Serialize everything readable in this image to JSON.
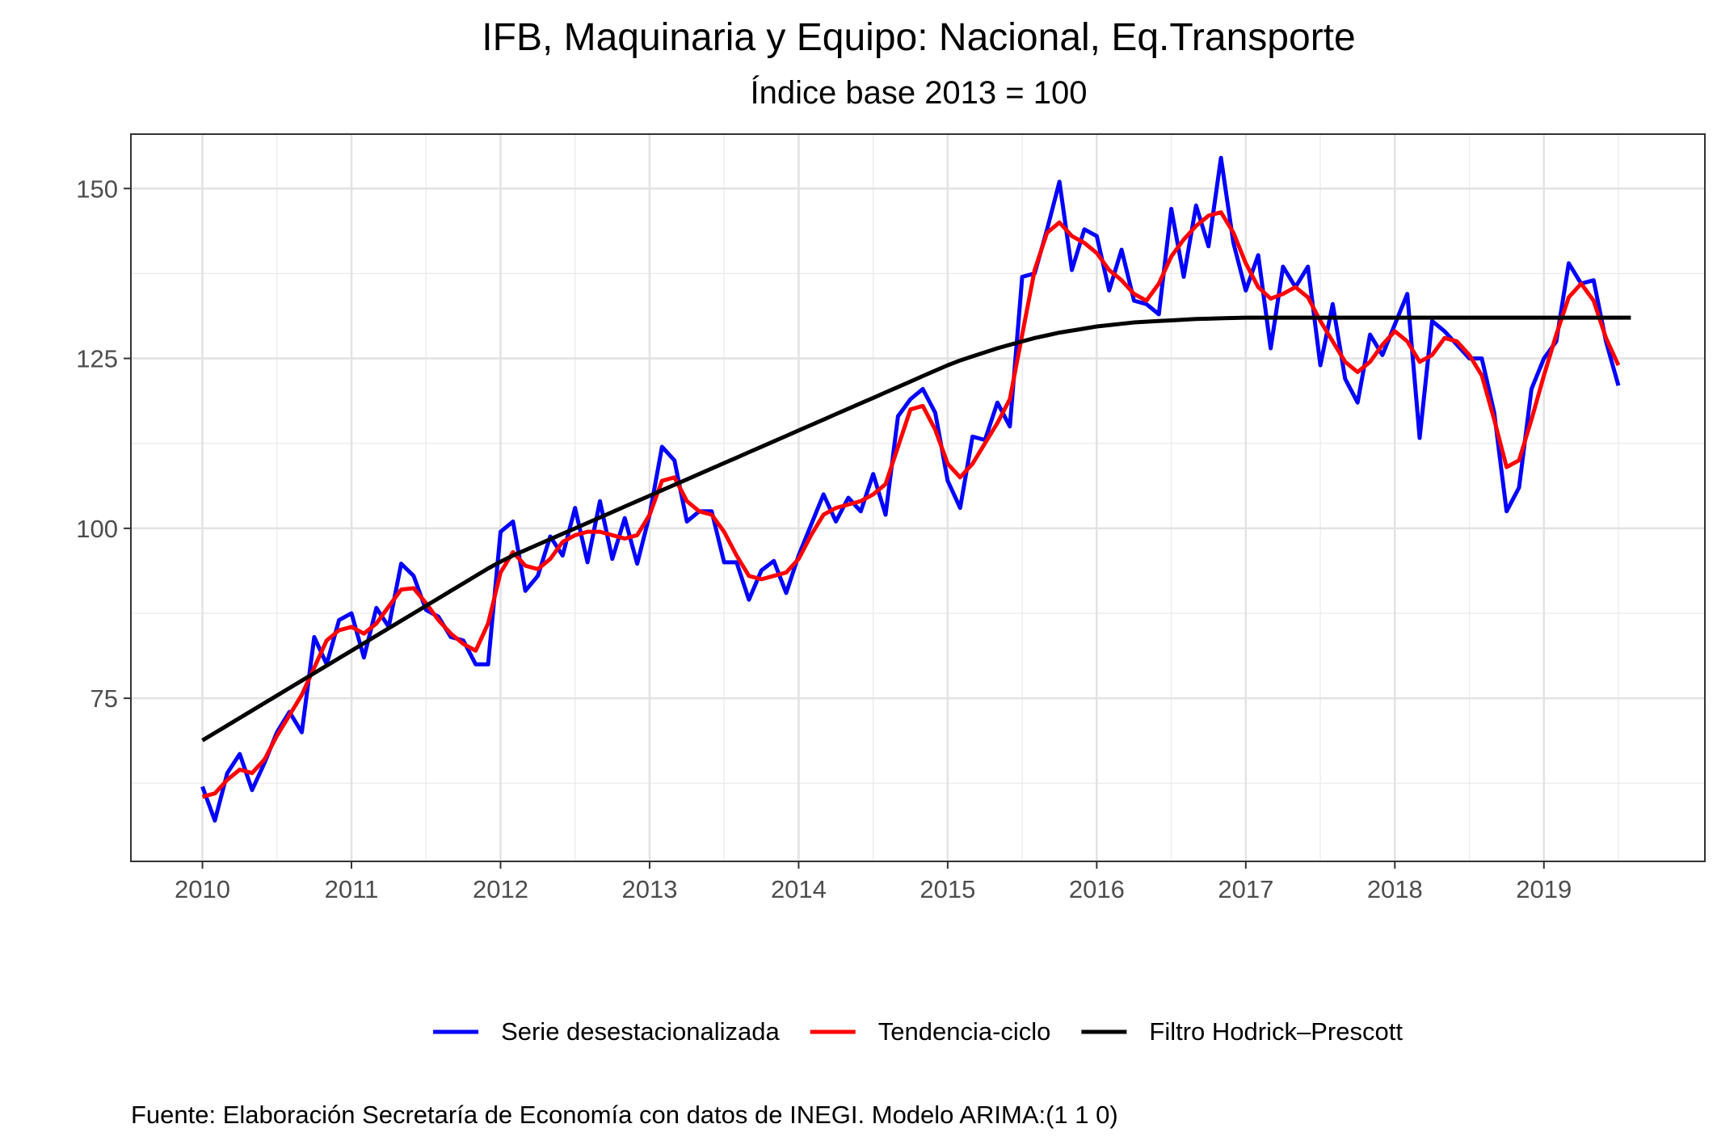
{
  "chart_data": {
    "type": "line",
    "title": "IFB, Maquinaria y Equipo: Nacional, Eq.Transporte",
    "subtitle": "Índice base 2013 = 100",
    "xlabel": "",
    "ylabel": "",
    "caption": "Fuente: Elaboración Secretaría de Economía con datos de INEGI. Modelo ARIMA:(1 1 0)",
    "xlim": [
      2009.52,
      2020.08
    ],
    "ylim": [
      51,
      158
    ],
    "x_ticks": [
      2010,
      2011,
      2012,
      2013,
      2014,
      2015,
      2016,
      2017,
      2018,
      2019
    ],
    "y_ticks": [
      75,
      100,
      125,
      150
    ],
    "grid": true,
    "legend_position": "bottom",
    "x_start": 2010,
    "x_step": 0.083333,
    "series": [
      {
        "name": "Serie desestacionalizada",
        "color": "#0000FF",
        "values": [
          62.0,
          57.0,
          64.0,
          66.8,
          61.5,
          65.5,
          70.0,
          73.0,
          70.0,
          84.0,
          80.0,
          86.5,
          87.5,
          81.0,
          88.3,
          85.5,
          94.8,
          93.0,
          88.0,
          87.0,
          84.0,
          83.5,
          80.0,
          80.0,
          99.5,
          101.0,
          90.8,
          93.0,
          98.8,
          96.0,
          103.0,
          95.0,
          104.0,
          95.5,
          101.5,
          94.8,
          102.0,
          112.0,
          110.0,
          101.0,
          102.5,
          102.5,
          95.0,
          95.0,
          89.5,
          93.8,
          95.2,
          90.5,
          96.0,
          100.5,
          105.0,
          101.0,
          104.5,
          102.5,
          108.0,
          102.0,
          116.5,
          119.0,
          120.5,
          117.0,
          107.0,
          103.0,
          113.5,
          113.0,
          118.5,
          115.0,
          137.0,
          137.5,
          144.0,
          151.0,
          138.0,
          144.0,
          143.0,
          135.0,
          141.0,
          133.5,
          133.0,
          131.5,
          147.0,
          137.0,
          147.5,
          141.5,
          154.5,
          142.0,
          135.0,
          140.2,
          126.5,
          138.5,
          135.5,
          138.5,
          124.0,
          133.0,
          122.0,
          118.5,
          128.5,
          125.5,
          130.0,
          134.5,
          113.3,
          130.5,
          129.0,
          127.0,
          125.0,
          125.0,
          117.0,
          102.5,
          106.0,
          120.5,
          125.0,
          127.5,
          139.0,
          136.0,
          136.5,
          127.5,
          121.0
        ]
      },
      {
        "name": "Tendencia-ciclo",
        "color": "#FF0000",
        "values": [
          60.5,
          61.0,
          63.0,
          64.5,
          64.0,
          66.0,
          69.5,
          72.5,
          75.5,
          79.5,
          83.5,
          85.0,
          85.5,
          84.5,
          86.0,
          88.5,
          91.0,
          91.2,
          89.0,
          86.5,
          84.5,
          83.0,
          82.0,
          86.0,
          93.5,
          96.5,
          94.5,
          94.0,
          95.5,
          98.0,
          99.0,
          99.5,
          99.5,
          99.0,
          98.5,
          99.0,
          102.0,
          107.0,
          107.5,
          104.0,
          102.5,
          102.0,
          99.5,
          96.0,
          93.0,
          92.5,
          93.0,
          93.5,
          95.5,
          99.0,
          102.0,
          103.0,
          103.5,
          104.0,
          105.0,
          106.5,
          112.0,
          117.5,
          118.0,
          114.5,
          109.5,
          107.5,
          109.5,
          112.5,
          115.5,
          119.0,
          128.5,
          138.0,
          143.5,
          145.0,
          143.0,
          142.0,
          140.5,
          138.0,
          136.5,
          134.5,
          133.5,
          136.0,
          140.0,
          142.5,
          144.5,
          146.0,
          146.5,
          143.5,
          139.0,
          135.5,
          133.8,
          134.5,
          135.5,
          134.0,
          130.5,
          127.5,
          124.5,
          123.0,
          124.5,
          127.0,
          129.0,
          127.5,
          124.5,
          125.5,
          128.0,
          127.5,
          125.5,
          122.5,
          116.0,
          109.0,
          110.0,
          116.0,
          122.5,
          128.5,
          134.0,
          136.0,
          133.5,
          128.0,
          124.0
        ]
      },
      {
        "name": "Filtro Hodrick–Prescott",
        "color": "#000000",
        "values": [
          68.8,
          69.9,
          71.0,
          72.1,
          73.2,
          74.3,
          75.4,
          76.5,
          77.6,
          78.7,
          79.8,
          80.9,
          82.0,
          83.1,
          84.2,
          85.3,
          86.4,
          87.5,
          88.6,
          89.7,
          90.8,
          91.9,
          93.0,
          94.1,
          95.1,
          96.0,
          96.8,
          97.6,
          98.4,
          99.2,
          100.0,
          100.8,
          101.6,
          102.4,
          103.2,
          104.0,
          104.8,
          105.6,
          106.4,
          107.2,
          108.0,
          108.8,
          109.6,
          110.4,
          111.2,
          112.0,
          112.8,
          113.6,
          114.4,
          115.2,
          116.0,
          116.8,
          117.6,
          118.4,
          119.2,
          120.0,
          120.8,
          121.6,
          122.4,
          123.2,
          124.0,
          124.7,
          125.3,
          125.9,
          126.5,
          127.0,
          127.5,
          128.0,
          128.4,
          128.8,
          129.1,
          129.4,
          129.7,
          129.9,
          130.1,
          130.3,
          130.4,
          130.5,
          130.6,
          130.7,
          130.8,
          130.85,
          130.9,
          130.95,
          131.0,
          131.0,
          131.0,
          131.0,
          131.0,
          131.0,
          131.0,
          131.0,
          131.0,
          131.0,
          131.0,
          131.0,
          131.0,
          131.0,
          131.0,
          131.0,
          131.0,
          131.0,
          131.0,
          131.0,
          131.0,
          131.0,
          131.0,
          131.0,
          131.0,
          131.0,
          131.0,
          131.0,
          131.0,
          131.0,
          131.0,
          131.0
        ]
      }
    ]
  }
}
